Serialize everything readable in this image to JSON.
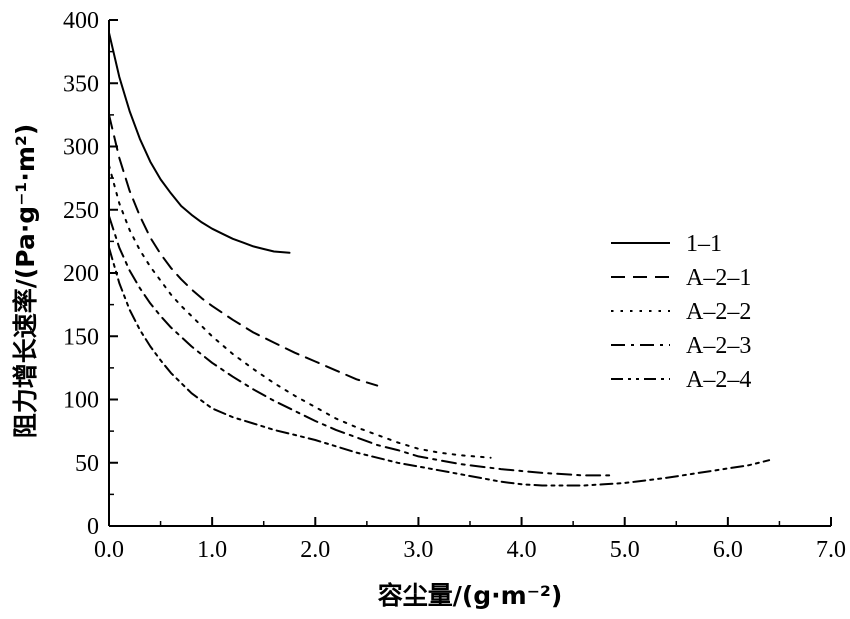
{
  "chart_data": {
    "type": "line",
    "xlabel": "容尘量/(g·m⁻²)",
    "ylabel": "阻力增长速率/(Pa·g⁻¹·m²)",
    "xlim": [
      0,
      7
    ],
    "ylim": [
      0,
      400
    ],
    "x_ticks": [
      "0.0",
      "1.0",
      "2.0",
      "3.0",
      "4.0",
      "5.0",
      "6.0",
      "7.0"
    ],
    "y_ticks": [
      "0",
      "50",
      "100",
      "150",
      "200",
      "250",
      "300",
      "350",
      "400"
    ],
    "legend_position": "right",
    "grid": false,
    "series": [
      {
        "name": "1–1",
        "dash": "solid",
        "x": [
          0.0,
          0.1,
          0.2,
          0.3,
          0.4,
          0.5,
          0.6,
          0.7,
          0.8,
          0.9,
          1.0,
          1.1,
          1.2,
          1.3,
          1.4,
          1.5,
          1.6,
          1.75
        ],
        "y": [
          390,
          355,
          328,
          306,
          288,
          274,
          263,
          253,
          246,
          240,
          235,
          231,
          227,
          224,
          221,
          219,
          217,
          216
        ]
      },
      {
        "name": "A–2–1",
        "dash": "dash",
        "x": [
          0.0,
          0.1,
          0.2,
          0.3,
          0.4,
          0.5,
          0.6,
          0.7,
          0.8,
          0.9,
          1.0,
          1.2,
          1.4,
          1.6,
          1.8,
          2.0,
          2.2,
          2.4,
          2.6
        ],
        "y": [
          325,
          291,
          265,
          245,
          228,
          215,
          204,
          195,
          187,
          180,
          174,
          163,
          153,
          145,
          137,
          130,
          123,
          116,
          111
        ]
      },
      {
        "name": "A–2–2",
        "dash": "dot",
        "x": [
          0.0,
          0.1,
          0.2,
          0.3,
          0.4,
          0.5,
          0.6,
          0.7,
          0.8,
          1.0,
          1.2,
          1.4,
          1.6,
          1.8,
          2.0,
          2.2,
          2.4,
          2.6,
          2.8,
          3.0,
          3.2,
          3.4,
          3.7
        ],
        "y": [
          285,
          255,
          234,
          218,
          205,
          194,
          183,
          174,
          166,
          150,
          136,
          124,
          113,
          103,
          94,
          85,
          78,
          72,
          66,
          61,
          58,
          56,
          54
        ]
      },
      {
        "name": "A–2–3",
        "dash": "dashdot",
        "x": [
          0.0,
          0.1,
          0.2,
          0.3,
          0.4,
          0.5,
          0.6,
          0.8,
          1.0,
          1.2,
          1.4,
          1.6,
          1.8,
          2.0,
          2.2,
          2.4,
          2.6,
          2.8,
          3.0,
          3.4,
          3.8,
          4.2,
          4.6,
          4.9
        ],
        "y": [
          245,
          220,
          202,
          188,
          176,
          166,
          157,
          142,
          129,
          118,
          108,
          99,
          91,
          83,
          76,
          70,
          64,
          60,
          55,
          49,
          45,
          42,
          40,
          40
        ]
      },
      {
        "name": "A–2–4",
        "dash": "dashdotdot",
        "x": [
          0.0,
          0.1,
          0.2,
          0.3,
          0.4,
          0.5,
          0.6,
          0.8,
          1.0,
          1.2,
          1.4,
          1.6,
          1.8,
          2.0,
          2.2,
          2.4,
          2.6,
          2.8,
          3.0,
          3.2,
          3.4,
          3.6,
          3.8,
          4.0,
          4.2,
          4.4,
          4.6,
          4.8,
          5.0,
          5.4,
          5.8,
          6.2,
          6.4
        ],
        "y": [
          220,
          192,
          171,
          155,
          142,
          131,
          121,
          105,
          93,
          86,
          81,
          76,
          72,
          68,
          63,
          58,
          54,
          50,
          47,
          44,
          41,
          38,
          35,
          33,
          32,
          32,
          32,
          33,
          34,
          38,
          43,
          48,
          52
        ]
      }
    ]
  }
}
